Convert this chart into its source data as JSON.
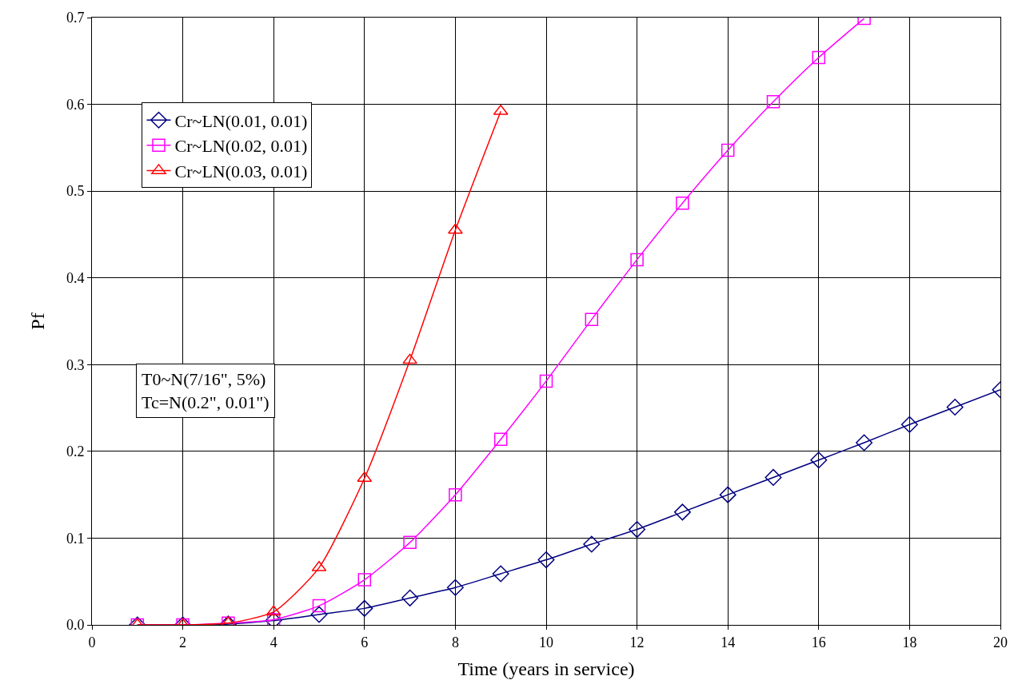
{
  "chart_data": {
    "type": "line",
    "xlabel": "Time (years in service)",
    "ylabel": "Pf",
    "x": [
      1,
      2,
      3,
      4,
      5,
      6,
      7,
      8,
      9,
      10,
      11,
      12,
      13,
      14,
      15,
      16,
      17,
      18,
      19,
      20
    ],
    "series": [
      {
        "name": "Cr~LN(0.01, 0.01)",
        "color": "#000080",
        "marker": "diamond",
        "values": [
          0,
          0,
          0.001,
          0.005,
          0.012,
          0.019,
          0.031,
          0.043,
          0.059,
          0.075,
          0.093,
          0.11,
          0.13,
          0.15,
          0.17,
          0.19,
          0.21,
          0.231,
          0.251,
          0.271
        ]
      },
      {
        "name": "Cr~LN(0.02, 0.01)",
        "color": "#ff00ff",
        "marker": "square",
        "values": [
          0,
          0,
          0.002,
          0.006,
          0.022,
          0.052,
          0.095,
          0.15,
          0.214,
          0.281,
          0.352,
          0.421,
          0.486,
          0.547,
          0.603,
          0.654,
          0.699,
          null,
          null,
          null
        ]
      },
      {
        "name": "Cr~LN(0.03, 0.01)",
        "color": "#ff0000",
        "marker": "triangle",
        "values": [
          0,
          0,
          0.002,
          0.015,
          0.066,
          0.169,
          0.305,
          0.455,
          0.592,
          null,
          null,
          null,
          null,
          null,
          null,
          null,
          null,
          null,
          null,
          null
        ]
      }
    ],
    "xlim": [
      0,
      20
    ],
    "xticks": [
      0,
      2,
      4,
      6,
      8,
      10,
      12,
      14,
      16,
      18,
      20
    ],
    "ylim": [
      0,
      0.7
    ],
    "yticks": [
      {
        "value": 0,
        "label": "0.0"
      },
      0.1,
      0.2,
      0.3,
      0.4,
      0.5,
      0.6,
      0.7
    ],
    "annotations": [
      "T0~N(7/16\", 5%)\nTc=N(0.2\", 0.01\")"
    ],
    "grid": true,
    "legend": "top left",
    "line_style": "solid"
  }
}
